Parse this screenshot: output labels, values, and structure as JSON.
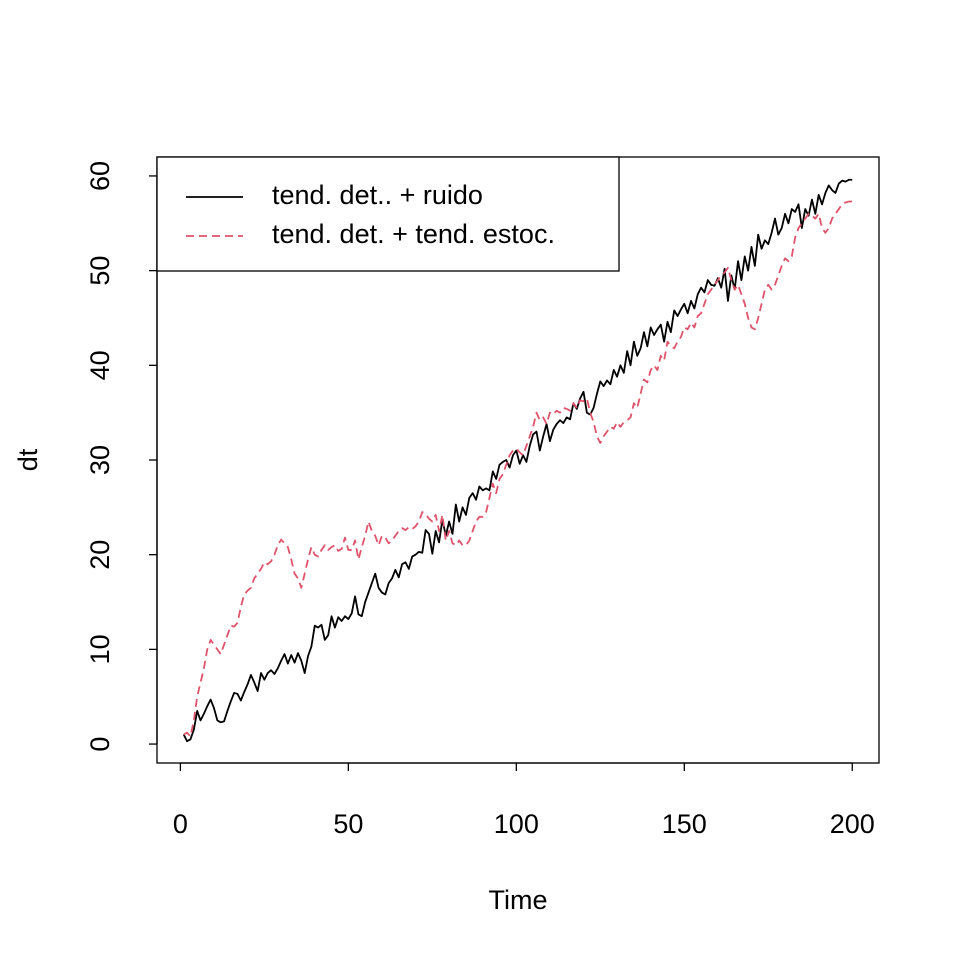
{
  "chart_data": {
    "type": "line",
    "xlabel": "Time",
    "ylabel": "dt",
    "x": [
      1,
      2,
      3,
      4,
      5,
      6,
      7,
      8,
      9,
      10,
      11,
      12,
      13,
      14,
      15,
      16,
      17,
      18,
      19,
      20,
      21,
      22,
      23,
      24,
      25,
      26,
      27,
      28,
      29,
      30,
      31,
      32,
      33,
      34,
      35,
      36,
      37,
      38,
      39,
      40,
      41,
      42,
      43,
      44,
      45,
      46,
      47,
      48,
      49,
      50,
      51,
      52,
      53,
      54,
      55,
      56,
      57,
      58,
      59,
      60,
      61,
      62,
      63,
      64,
      65,
      66,
      67,
      68,
      69,
      70,
      71,
      72,
      73,
      74,
      75,
      76,
      77,
      78,
      79,
      80,
      81,
      82,
      83,
      84,
      85,
      86,
      87,
      88,
      89,
      90,
      91,
      92,
      93,
      94,
      95,
      96,
      97,
      98,
      99,
      100,
      101,
      102,
      103,
      104,
      105,
      106,
      107,
      108,
      109,
      110,
      111,
      112,
      113,
      114,
      115,
      116,
      117,
      118,
      119,
      120,
      121,
      122,
      123,
      124,
      125,
      126,
      127,
      128,
      129,
      130,
      131,
      132,
      133,
      134,
      135,
      136,
      137,
      138,
      139,
      140,
      141,
      142,
      143,
      144,
      145,
      146,
      147,
      148,
      149,
      150,
      151,
      152,
      153,
      154,
      155,
      156,
      157,
      158,
      159,
      160,
      161,
      162,
      163,
      164,
      165,
      166,
      167,
      168,
      169,
      170,
      171,
      172,
      173,
      174,
      175,
      176,
      177,
      178,
      179,
      180,
      181,
      182,
      183,
      184,
      185,
      186,
      187,
      188,
      189,
      190,
      191,
      192,
      193,
      194,
      195,
      196,
      197,
      198,
      199,
      200
    ],
    "series": [
      {
        "name": "tend. det.. + ruido",
        "color": "#000000",
        "dash": "solid",
        "values": [
          1,
          0.3,
          0.5,
          1.5,
          3.5,
          2.5,
          3.2,
          4,
          4.7,
          3.8,
          2.5,
          2.3,
          2.4,
          3.5,
          4.5,
          5.4,
          5.3,
          4.6,
          5.5,
          6.3,
          7.3,
          6.5,
          5.6,
          7.5,
          6.8,
          7.5,
          7.8,
          7.4,
          8,
          8.8,
          9.5,
          8.5,
          9.4,
          8.6,
          9.6,
          8.8,
          7.5,
          9.3,
          10.3,
          12.5,
          12.3,
          12.6,
          11,
          11.5,
          13.5,
          12.3,
          13.4,
          13,
          13.5,
          13.2,
          13.8,
          15.6,
          13.7,
          13.5,
          15,
          16,
          17,
          18,
          16.5,
          16,
          15.8,
          17,
          17.5,
          18.4,
          17.6,
          19,
          19.2,
          18.5,
          19.8,
          20,
          20.3,
          20.2,
          22.6,
          22.2,
          20.1,
          22.5,
          21.3,
          23.7,
          22,
          23.5,
          22.2,
          25.3,
          23.5,
          25,
          24.2,
          26,
          26.5,
          25.8,
          27.2,
          26.8,
          27,
          26.8,
          28.8,
          28,
          29.5,
          29.8,
          30,
          29.2,
          30.5,
          31,
          29.6,
          30.5,
          29.8,
          31.5,
          32.7,
          33,
          31,
          32.5,
          33.8,
          32,
          33.2,
          33.8,
          34.2,
          33.9,
          34.5,
          34.3,
          36,
          35.4,
          36.5,
          37.2,
          35,
          34.8,
          35.5,
          37,
          38.3,
          37.8,
          38.4,
          38,
          39.5,
          38.8,
          40,
          39.2,
          41.5,
          40,
          42.5,
          41,
          41.8,
          43.5,
          42,
          44,
          43.2,
          43.8,
          44.3,
          42.5,
          44.6,
          43.5,
          45.8,
          45.2,
          45.9,
          46.5,
          45.5,
          46.8,
          46,
          47.5,
          48.2,
          47.7,
          49,
          48.5,
          48.4,
          49.2,
          48.2,
          50.2,
          46.8,
          49.5,
          48,
          51,
          49,
          51.5,
          50,
          52.5,
          50.5,
          53.8,
          52.3,
          53.2,
          52.8,
          54,
          55.5,
          53.8,
          54.5,
          56,
          55,
          56.5,
          56.2,
          57,
          54.5,
          56.5,
          55.8,
          57.5,
          56,
          58,
          57,
          58.2,
          59,
          58.5,
          58.2,
          59.2,
          59.5,
          59.4,
          59.6,
          59.6
        ]
      },
      {
        "name": "tend. det. + tend. estoc.",
        "color": "#DF536B",
        "dash": "dashed",
        "values": [
          1,
          1.2,
          0.8,
          2.5,
          5,
          6.5,
          8,
          10,
          11,
          10.5,
          10,
          9.5,
          10.5,
          11.5,
          12.5,
          12.4,
          12.8,
          14.5,
          15.8,
          16.2,
          16.5,
          17.5,
          18,
          18.5,
          19.2,
          19,
          19.3,
          20,
          21,
          21.6,
          21.2,
          20.8,
          19.5,
          18,
          17.5,
          16.5,
          18,
          19.5,
          20.8,
          20,
          19.8,
          20.5,
          21,
          20.5,
          20.8,
          21,
          20.4,
          20.6,
          21.8,
          20.5,
          20.5,
          21.5,
          19.5,
          20.8,
          22,
          23.5,
          22.5,
          22,
          21,
          22,
          21.8,
          21.2,
          21.5,
          22,
          22.5,
          22.8,
          22.6,
          22.9,
          22.7,
          23,
          23.5,
          24.5,
          24.3,
          23.8,
          23.5,
          24.2,
          22.5,
          24.2,
          21.5,
          22.5,
          21.2,
          21,
          21.5,
          21,
          21,
          21.5,
          22.5,
          23.5,
          24,
          24,
          24.5,
          26,
          27.5,
          26.5,
          28,
          28.5,
          29.5,
          30.5,
          31,
          31.2,
          30.8,
          30.5,
          31.5,
          32.5,
          33.5,
          35,
          34.2,
          34.5,
          33.8,
          35,
          34.8,
          35.2,
          35,
          35.5,
          35.4,
          35.2,
          36,
          35.5,
          36.3,
          36.2,
          36.5,
          35,
          34,
          32.5,
          31.8,
          32.5,
          33,
          33.5,
          33.3,
          34,
          33.5,
          34,
          34.2,
          34.5,
          36,
          35.5,
          37,
          38.5,
          38.2,
          39.5,
          40,
          39.5,
          41,
          40.5,
          42.5,
          42,
          41.8,
          42.5,
          43,
          44,
          43.8,
          44.5,
          44,
          45.2,
          45.5,
          46.5,
          47.5,
          48,
          48.5,
          49,
          49.5,
          49.8,
          50.3,
          49,
          48,
          48.5,
          47.5,
          46.5,
          45,
          44,
          43.8,
          45,
          46.5,
          48,
          48.5,
          48,
          48.5,
          49.5,
          50.5,
          51.3,
          51,
          51.5,
          53.5,
          54.5,
          55,
          55.5,
          56,
          55.8,
          55.5,
          56,
          54.5,
          54,
          54.5,
          55.5,
          56,
          56.5,
          57,
          57.2,
          57.3,
          57.3
        ]
      }
    ],
    "xlim": [
      -6.96,
      207.96
    ],
    "xticks": [
      0,
      50,
      100,
      150,
      200
    ],
    "ylim": [
      -2,
      62
    ],
    "yticks": [
      0,
      10,
      20,
      30,
      40,
      50,
      60
    ],
    "legend": "top-left",
    "grid": false
  }
}
